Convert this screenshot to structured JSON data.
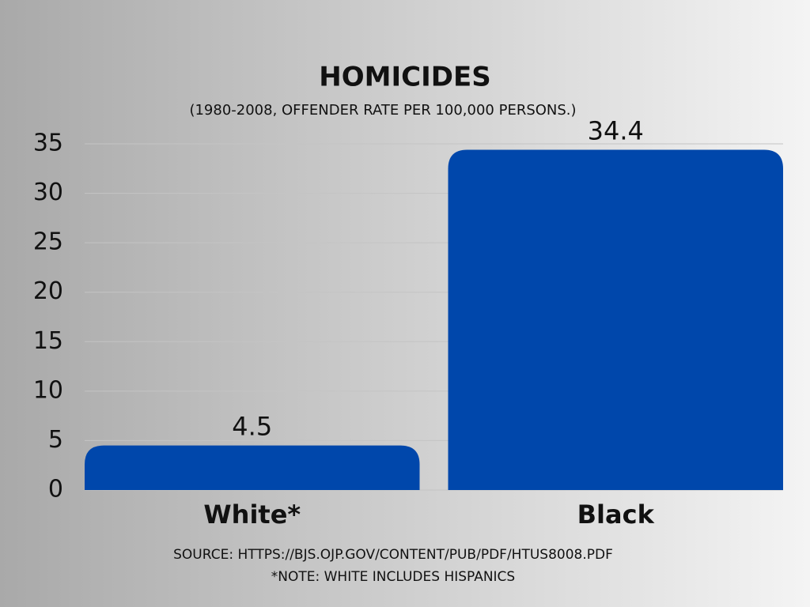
{
  "chart_data": {
    "type": "bar",
    "title": "HOMICIDES",
    "subtitle": "(1980-2008, OFFENDER RATE PER 100,000 PERSONS.)",
    "categories": [
      "White*",
      "Black"
    ],
    "values": [
      4.5,
      34.4
    ],
    "color": "#0047ab",
    "ylim": [
      0,
      35
    ],
    "yticks": [
      0,
      5,
      10,
      15,
      20,
      25,
      30,
      35
    ],
    "grid": true,
    "source": "SOURCE: HTTPS://BJS.OJP.GOV/CONTENT/PUB/PDF/HTUS8008.PDF",
    "note": "*NOTE: WHITE INCLUDES HISPANICS"
  }
}
